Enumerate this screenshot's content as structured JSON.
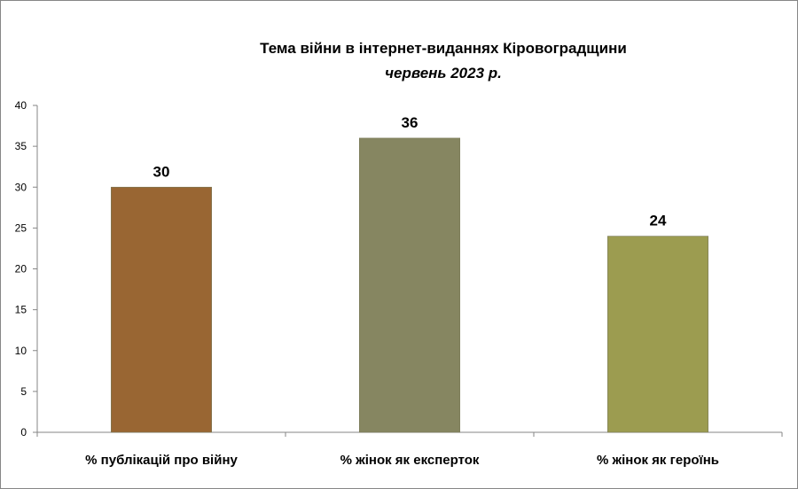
{
  "chart_data": {
    "type": "bar",
    "title": "Тема війни в інтернет-виданнях  Кіровоградщини",
    "subtitle": "червень 2023 р.",
    "categories": [
      "% публікацій про війну",
      "% жінок як експерток",
      "% жінок як героїнь"
    ],
    "values": [
      30,
      36,
      24
    ],
    "bar_colors": [
      "#996633",
      "#868661",
      "#9c9c50"
    ],
    "ylim": [
      0,
      40
    ],
    "yticks": [
      0,
      5,
      10,
      15,
      20,
      25,
      30,
      35,
      40
    ],
    "grid": false,
    "legend": "none"
  }
}
